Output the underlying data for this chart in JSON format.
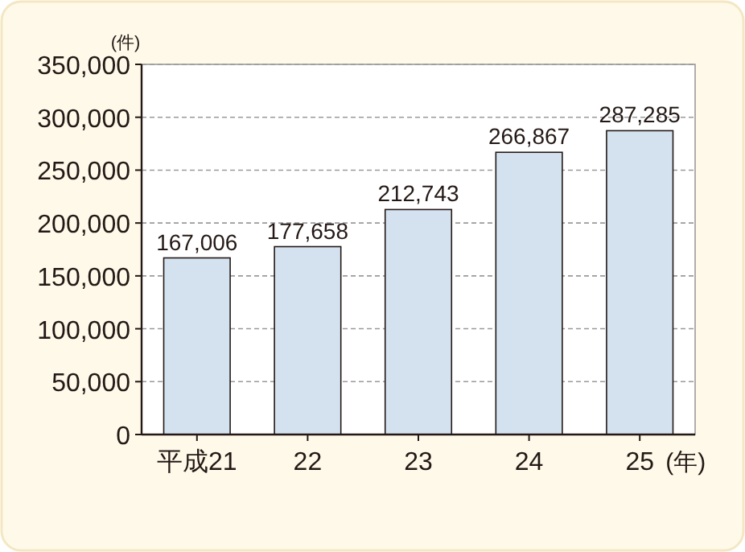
{
  "chart_data": {
    "type": "bar",
    "ylabel": "(件)",
    "xlabel": "(年)",
    "categories": [
      "平成21",
      "22",
      "23",
      "24",
      "25"
    ],
    "values": [
      167006,
      177658,
      212743,
      266867,
      287285
    ],
    "value_labels": [
      "167,006",
      "177,658",
      "212,743",
      "266,867",
      "287,285"
    ],
    "color": "#d4e2f0",
    "ylim": [
      0,
      350000
    ],
    "yticks": [
      {
        "value": 0,
        "label": "0"
      },
      {
        "value": 50000,
        "label": "50,000"
      },
      {
        "value": 100000,
        "label": "100,000"
      },
      {
        "value": 150000,
        "label": "150,000"
      },
      {
        "value": 200000,
        "label": "200,000"
      },
      {
        "value": 250000,
        "label": "250,000"
      },
      {
        "value": 300000,
        "label": "300,000"
      },
      {
        "value": 350000,
        "label": "350,000"
      }
    ],
    "grid": "y"
  }
}
